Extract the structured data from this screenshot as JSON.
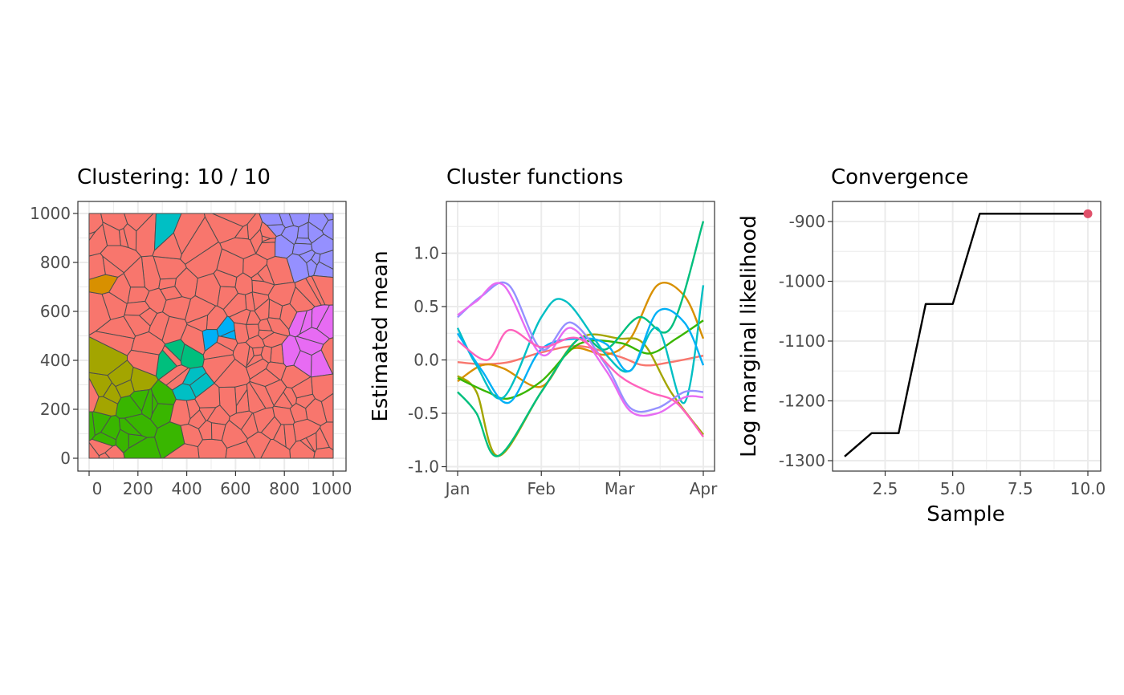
{
  "chart_data": [
    {
      "type": "map",
      "title": "Clustering: 10 / 10",
      "xlim": [
        0,
        1000
      ],
      "ylim": [
        0,
        1000
      ],
      "xticks": [
        0,
        200,
        400,
        600,
        800,
        1000
      ],
      "yticks": [
        0,
        200,
        400,
        600,
        800,
        1000
      ],
      "xtick_labels": [
        "0",
        "200",
        "400",
        "600",
        "800",
        "1000"
      ],
      "ytick_labels": [
        "0",
        "200",
        "400",
        "600",
        "800",
        "1000"
      ],
      "grid": true,
      "base_color": "#F8766D",
      "edge_color": "#4d4d4d",
      "cluster_colors": [
        "#F8766D",
        "#D89000",
        "#A3A500",
        "#39B600",
        "#00BF7D",
        "#00BFC4",
        "#00B0F6",
        "#9590FF",
        "#E76BF3",
        "#FF62BC"
      ]
    },
    {
      "type": "line",
      "title": "Cluster functions",
      "xlabel": "",
      "ylabel": "Estimated mean",
      "xlim": [
        "2020-01-01",
        "2020-04-01"
      ],
      "ylim": [
        -1.0,
        1.4
      ],
      "xticks": [
        "2020-01-01",
        "2020-02-01",
        "2020-03-01",
        "2020-04-01"
      ],
      "xtick_labels": [
        "Jan",
        "Feb",
        "Mar",
        "Apr"
      ],
      "yticks": [
        -1.0,
        -0.5,
        0.0,
        0.5,
        1.0
      ],
      "ytick_labels": [
        "-1.0",
        "-0.5",
        "0.0",
        "0.5",
        "1.0"
      ],
      "grid": true,
      "series": [
        {
          "color": "#F8766D",
          "x": [
            "2020-01-01",
            "2020-01-10",
            "2020-01-20",
            "2020-02-01",
            "2020-02-15",
            "2020-03-01",
            "2020-03-10",
            "2020-03-20",
            "2020-04-01"
          ],
          "values": [
            -0.02,
            -0.04,
            -0.02,
            0.07,
            0.13,
            0.03,
            -0.05,
            -0.02,
            0.04
          ]
        },
        {
          "color": "#D89000",
          "x": [
            "2020-01-01",
            "2020-01-10",
            "2020-01-18",
            "2020-02-01",
            "2020-02-12",
            "2020-02-25",
            "2020-03-05",
            "2020-03-15",
            "2020-03-25",
            "2020-04-01"
          ],
          "values": [
            -0.2,
            -0.05,
            -0.08,
            -0.25,
            0.1,
            0.05,
            0.2,
            0.7,
            0.6,
            0.2
          ]
        },
        {
          "color": "#A3A500",
          "x": [
            "2020-01-01",
            "2020-01-08",
            "2020-01-16",
            "2020-02-01",
            "2020-02-15",
            "2020-03-01",
            "2020-03-10",
            "2020-03-20",
            "2020-04-01"
          ],
          "values": [
            -0.15,
            -0.3,
            -0.9,
            -0.3,
            0.2,
            0.2,
            0.15,
            -0.3,
            -0.7
          ]
        },
        {
          "color": "#39B600",
          "x": [
            "2020-01-01",
            "2020-01-12",
            "2020-01-20",
            "2020-02-01",
            "2020-02-15",
            "2020-03-01",
            "2020-03-12",
            "2020-03-22",
            "2020-04-01"
          ],
          "values": [
            -0.17,
            -0.3,
            -0.36,
            -0.2,
            0.15,
            0.16,
            0.06,
            0.2,
            0.37
          ]
        },
        {
          "color": "#00BF7D",
          "x": [
            "2020-01-01",
            "2020-01-08",
            "2020-01-16",
            "2020-02-01",
            "2020-02-15",
            "2020-02-25",
            "2020-03-08",
            "2020-03-20",
            "2020-04-01"
          ],
          "values": [
            -0.3,
            -0.5,
            -0.9,
            -0.3,
            0.2,
            0.1,
            0.4,
            0.3,
            1.3
          ]
        },
        {
          "color": "#00BFC4",
          "x": [
            "2020-01-01",
            "2020-01-08",
            "2020-01-18",
            "2020-02-01",
            "2020-02-10",
            "2020-02-25",
            "2020-03-05",
            "2020-03-15",
            "2020-03-25",
            "2020-04-01"
          ],
          "values": [
            0.3,
            -0.05,
            -0.35,
            0.4,
            0.55,
            0.05,
            -0.1,
            0.3,
            -0.4,
            0.7
          ]
        },
        {
          "color": "#00B0F6",
          "x": [
            "2020-01-01",
            "2020-01-10",
            "2020-01-20",
            "2020-02-01",
            "2020-02-15",
            "2020-02-25",
            "2020-03-05",
            "2020-03-15",
            "2020-03-25",
            "2020-04-01"
          ],
          "values": [
            0.25,
            -0.1,
            -0.4,
            0.1,
            0.2,
            0.15,
            -0.1,
            0.45,
            0.35,
            -0.05
          ]
        },
        {
          "color": "#9590FF",
          "x": [
            "2020-01-01",
            "2020-01-10",
            "2020-01-20",
            "2020-02-01",
            "2020-02-12",
            "2020-02-25",
            "2020-03-05",
            "2020-03-15",
            "2020-03-25",
            "2020-04-01"
          ],
          "values": [
            0.4,
            0.6,
            0.7,
            0.1,
            0.35,
            -0.05,
            -0.45,
            -0.45,
            -0.3,
            -0.3
          ]
        },
        {
          "color": "#E76BF3",
          "x": [
            "2020-01-01",
            "2020-01-08",
            "2020-01-18",
            "2020-02-01",
            "2020-02-12",
            "2020-02-25",
            "2020-03-05",
            "2020-03-15",
            "2020-03-25",
            "2020-04-01"
          ],
          "values": [
            0.42,
            0.55,
            0.7,
            0.05,
            0.3,
            -0.1,
            -0.48,
            -0.5,
            -0.35,
            -0.35
          ]
        },
        {
          "color": "#FF62BC",
          "x": [
            "2020-01-01",
            "2020-01-12",
            "2020-01-20",
            "2020-02-01",
            "2020-02-15",
            "2020-03-01",
            "2020-03-12",
            "2020-03-22",
            "2020-04-01"
          ],
          "values": [
            0.18,
            0.0,
            0.28,
            0.12,
            0.2,
            -0.15,
            -0.3,
            -0.4,
            -0.72
          ]
        }
      ]
    },
    {
      "type": "line",
      "title": "Convergence",
      "xlabel": "Sample",
      "ylabel": "Log marginal likelihood",
      "xlim": [
        1,
        10
      ],
      "ylim": [
        -1300,
        -887
      ],
      "xticks": [
        2.5,
        5.0,
        7.5,
        10.0
      ],
      "xtick_labels": [
        "2.5",
        "5.0",
        "7.5",
        "10.0"
      ],
      "yticks": [
        -900,
        -1000,
        -1100,
        -1200,
        -1300
      ],
      "ytick_labels": [
        "-900",
        "-1000",
        "-1100",
        "-1200",
        "-1300"
      ],
      "grid": true,
      "series": [
        {
          "color": "#000000",
          "x": [
            1,
            2,
            3,
            4,
            5,
            6,
            7,
            8,
            9,
            10
          ],
          "values": [
            -1293,
            -1254,
            -1254,
            -1038,
            -1038,
            -887,
            -887,
            -887,
            -887,
            -887
          ]
        }
      ],
      "highlight": {
        "x": 10,
        "value": -887,
        "color": "#E0506A"
      }
    }
  ]
}
